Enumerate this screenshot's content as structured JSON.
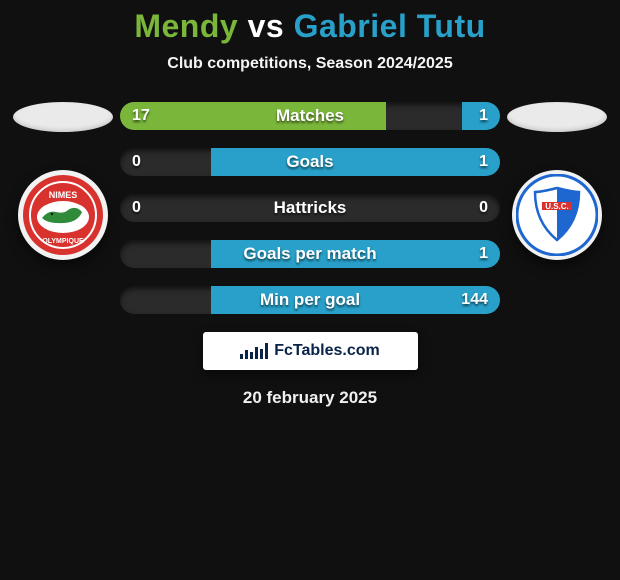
{
  "header": {
    "player1": "Mendy",
    "vs": "vs",
    "player2": "Gabriel Tutu",
    "subtitle": "Club competitions, Season 2024/2025"
  },
  "colors": {
    "player1_name": "#7ab63a",
    "vs": "#ffffff",
    "player2_name": "#28a0c9",
    "bar_left": "#7ab63a",
    "bar_right": "#28a0c9",
    "track": "#2b2b2b"
  },
  "stats": [
    {
      "label": "Matches",
      "left_val": "17",
      "right_val": "1",
      "left_pct": 70,
      "right_pct": 10
    },
    {
      "label": "Goals",
      "left_val": "0",
      "right_val": "1",
      "left_pct": 0,
      "right_pct": 76
    },
    {
      "label": "Hattricks",
      "left_val": "0",
      "right_val": "0",
      "left_pct": 0,
      "right_pct": 0
    },
    {
      "label": "Goals per match",
      "left_val": "",
      "right_val": "1",
      "left_pct": 0,
      "right_pct": 76
    },
    {
      "label": "Min per goal",
      "left_val": "",
      "right_val": "144",
      "left_pct": 0,
      "right_pct": 76
    }
  ],
  "brand": {
    "text": "FcTables.com"
  },
  "date": "20 february 2025",
  "club_left": {
    "name": "Nimes Olympique",
    "bg": "#d8322f",
    "fg": "#ffffff",
    "abbrev": "NIMES"
  },
  "club_right": {
    "name": "USC",
    "bg": "#ffffff",
    "ring": "#1e66d0",
    "accent": "#d8322f",
    "abbrev": "U.S.C."
  }
}
